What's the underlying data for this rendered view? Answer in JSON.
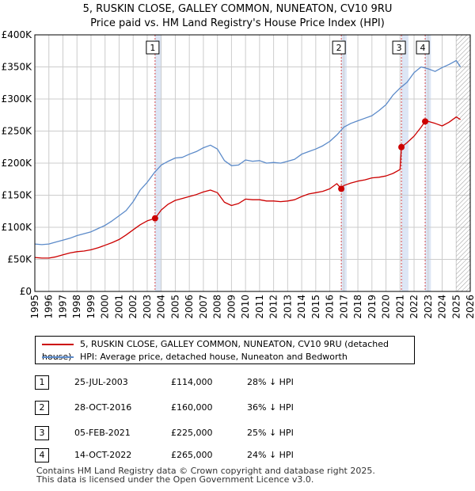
{
  "title_line1": "5, RUSKIN CLOSE, GALLEY COMMON, NUNEATON, CV10 9RU",
  "title_line2": "Price paid vs. HM Land Registry's House Price Index (HPI)",
  "legend": {
    "property_label": "5, RUSKIN CLOSE, GALLEY COMMON, NUNEATON, CV10 9RU (detached house)",
    "hpi_label": "HPI: Average price, detached house, Nuneaton and Bedworth"
  },
  "colors": {
    "property": "#cc0000",
    "hpi": "#5b8ac9",
    "shade": "#dde6f5",
    "grid": "#cccccc"
  },
  "transactions": [
    {
      "num": "1",
      "date": "25-JUL-2003",
      "price": "£114,000",
      "hpi": "28% ↓ HPI"
    },
    {
      "num": "2",
      "date": "28-OCT-2016",
      "price": "£160,000",
      "hpi": "36% ↓ HPI"
    },
    {
      "num": "3",
      "date": "05-FEB-2021",
      "price": "£225,000",
      "hpi": "25% ↓ HPI"
    },
    {
      "num": "4",
      "date": "14-OCT-2022",
      "price": "£265,000",
      "hpi": "24% ↓ HPI"
    }
  ],
  "footer_line1": "Contains HM Land Registry data © Crown copyright and database right 2025.",
  "footer_line2": "This data is licensed under the Open Government Licence v3.0.",
  "chart_data": {
    "type": "line",
    "title": "5, RUSKIN CLOSE, GALLEY COMMON, NUNEATON, CV10 9RU",
    "subtitle": "Price paid vs. HM Land Registry's House Price Index (HPI)",
    "xlabel": "",
    "ylabel": "",
    "xlim": [
      1995,
      2026
    ],
    "ylim": [
      0,
      400000
    ],
    "x_ticks": [
      1995,
      1996,
      1997,
      1998,
      1999,
      2000,
      2001,
      2002,
      2003,
      2004,
      2005,
      2006,
      2007,
      2008,
      2009,
      2010,
      2011,
      2012,
      2013,
      2014,
      2015,
      2016,
      2017,
      2018,
      2019,
      2020,
      2021,
      2022,
      2023,
      2024,
      2025,
      2026
    ],
    "y_ticks": [
      0,
      50000,
      100000,
      150000,
      200000,
      250000,
      300000,
      350000,
      400000
    ],
    "y_tick_labels": [
      "£0",
      "£50K",
      "£100K",
      "£150K",
      "£200K",
      "£250K",
      "£300K",
      "£350K",
      "£400K"
    ],
    "grid": true,
    "legend_position": "below",
    "shaded_ranges": [
      [
        2003.56,
        2004.0
      ],
      [
        2016.82,
        2017.2
      ],
      [
        2021.1,
        2021.6
      ],
      [
        2022.79,
        2023.2
      ]
    ],
    "hatched_after": 2025.0,
    "series": [
      {
        "name": "HPI: Average price, detached house, Nuneaton and Bedworth",
        "x": [
          1995,
          1995.5,
          1996,
          1996.5,
          1997,
          1997.5,
          1998,
          1998.5,
          1999,
          1999.5,
          2000,
          2000.5,
          2001,
          2001.5,
          2002,
          2002.5,
          2003,
          2003.5,
          2004,
          2004.5,
          2005,
          2005.5,
          2006,
          2006.5,
          2007,
          2007.5,
          2008,
          2008.5,
          2009,
          2009.5,
          2010,
          2010.5,
          2011,
          2011.5,
          2012,
          2012.5,
          2013,
          2013.5,
          2014,
          2014.5,
          2015,
          2015.5,
          2016,
          2016.5,
          2017,
          2017.5,
          2018,
          2018.5,
          2019,
          2019.5,
          2020,
          2020.5,
          2021,
          2021.5,
          2022,
          2022.5,
          2023,
          2023.5,
          2024,
          2024.5,
          2025,
          2025.3
        ],
        "values": [
          74000,
          73000,
          74000,
          77000,
          80000,
          83000,
          87000,
          90000,
          93000,
          98000,
          103000,
          110000,
          118000,
          126000,
          140000,
          158000,
          170000,
          185000,
          197000,
          203000,
          208000,
          209000,
          214000,
          218000,
          224000,
          228000,
          222000,
          204000,
          196000,
          197000,
          205000,
          203000,
          204000,
          200000,
          201000,
          200000,
          203000,
          206000,
          214000,
          218000,
          222000,
          227000,
          234000,
          244000,
          256000,
          262000,
          266000,
          270000,
          274000,
          282000,
          291000,
          306000,
          317000,
          326000,
          341000,
          350000,
          347000,
          343000,
          349000,
          354000,
          360000,
          350000
        ]
      },
      {
        "name": "5, RUSKIN CLOSE, GALLEY COMMON, NUNEATON, CV10 9RU (detached house)",
        "x": [
          1995,
          1995.5,
          1996,
          1996.5,
          1997,
          1997.5,
          1998,
          1998.5,
          1999,
          1999.5,
          2000,
          2000.5,
          2001,
          2001.5,
          2002,
          2002.5,
          2003,
          2003.56,
          2004,
          2004.5,
          2005,
          2005.5,
          2006,
          2006.5,
          2007,
          2007.5,
          2008,
          2008.5,
          2009,
          2009.5,
          2010,
          2010.5,
          2011,
          2011.5,
          2012,
          2012.5,
          2013,
          2013.5,
          2014,
          2014.5,
          2015,
          2015.5,
          2016,
          2016.5,
          2016.82,
          2017,
          2017.5,
          2018,
          2018.5,
          2019,
          2019.5,
          2020,
          2020.5,
          2021.0,
          2021.1,
          2021.5,
          2022,
          2022.5,
          2022.79,
          2023,
          2023.5,
          2024,
          2024.5,
          2025,
          2025.3
        ],
        "values": [
          53000,
          52000,
          52000,
          54000,
          57000,
          60000,
          62000,
          63000,
          65000,
          68000,
          72000,
          76000,
          81000,
          88000,
          96000,
          104000,
          110000,
          114000,
          127000,
          136000,
          142000,
          145000,
          148000,
          151000,
          155000,
          158000,
          154000,
          139000,
          134000,
          137000,
          144000,
          143000,
          143000,
          141000,
          141000,
          140000,
          141000,
          143000,
          148000,
          152000,
          154000,
          156000,
          160000,
          168000,
          160000,
          165000,
          169000,
          172000,
          174000,
          177000,
          178000,
          180000,
          184000,
          190000,
          225000,
          232000,
          242000,
          256000,
          265000,
          265000,
          262000,
          258000,
          264000,
          272000,
          268000
        ]
      }
    ],
    "sale_points": [
      {
        "label": "1",
        "x": 2003.56,
        "y": 114000
      },
      {
        "label": "2",
        "x": 2016.82,
        "y": 160000
      },
      {
        "label": "3",
        "x": 2021.1,
        "y": 225000
      },
      {
        "label": "4",
        "x": 2022.79,
        "y": 265000
      }
    ]
  }
}
